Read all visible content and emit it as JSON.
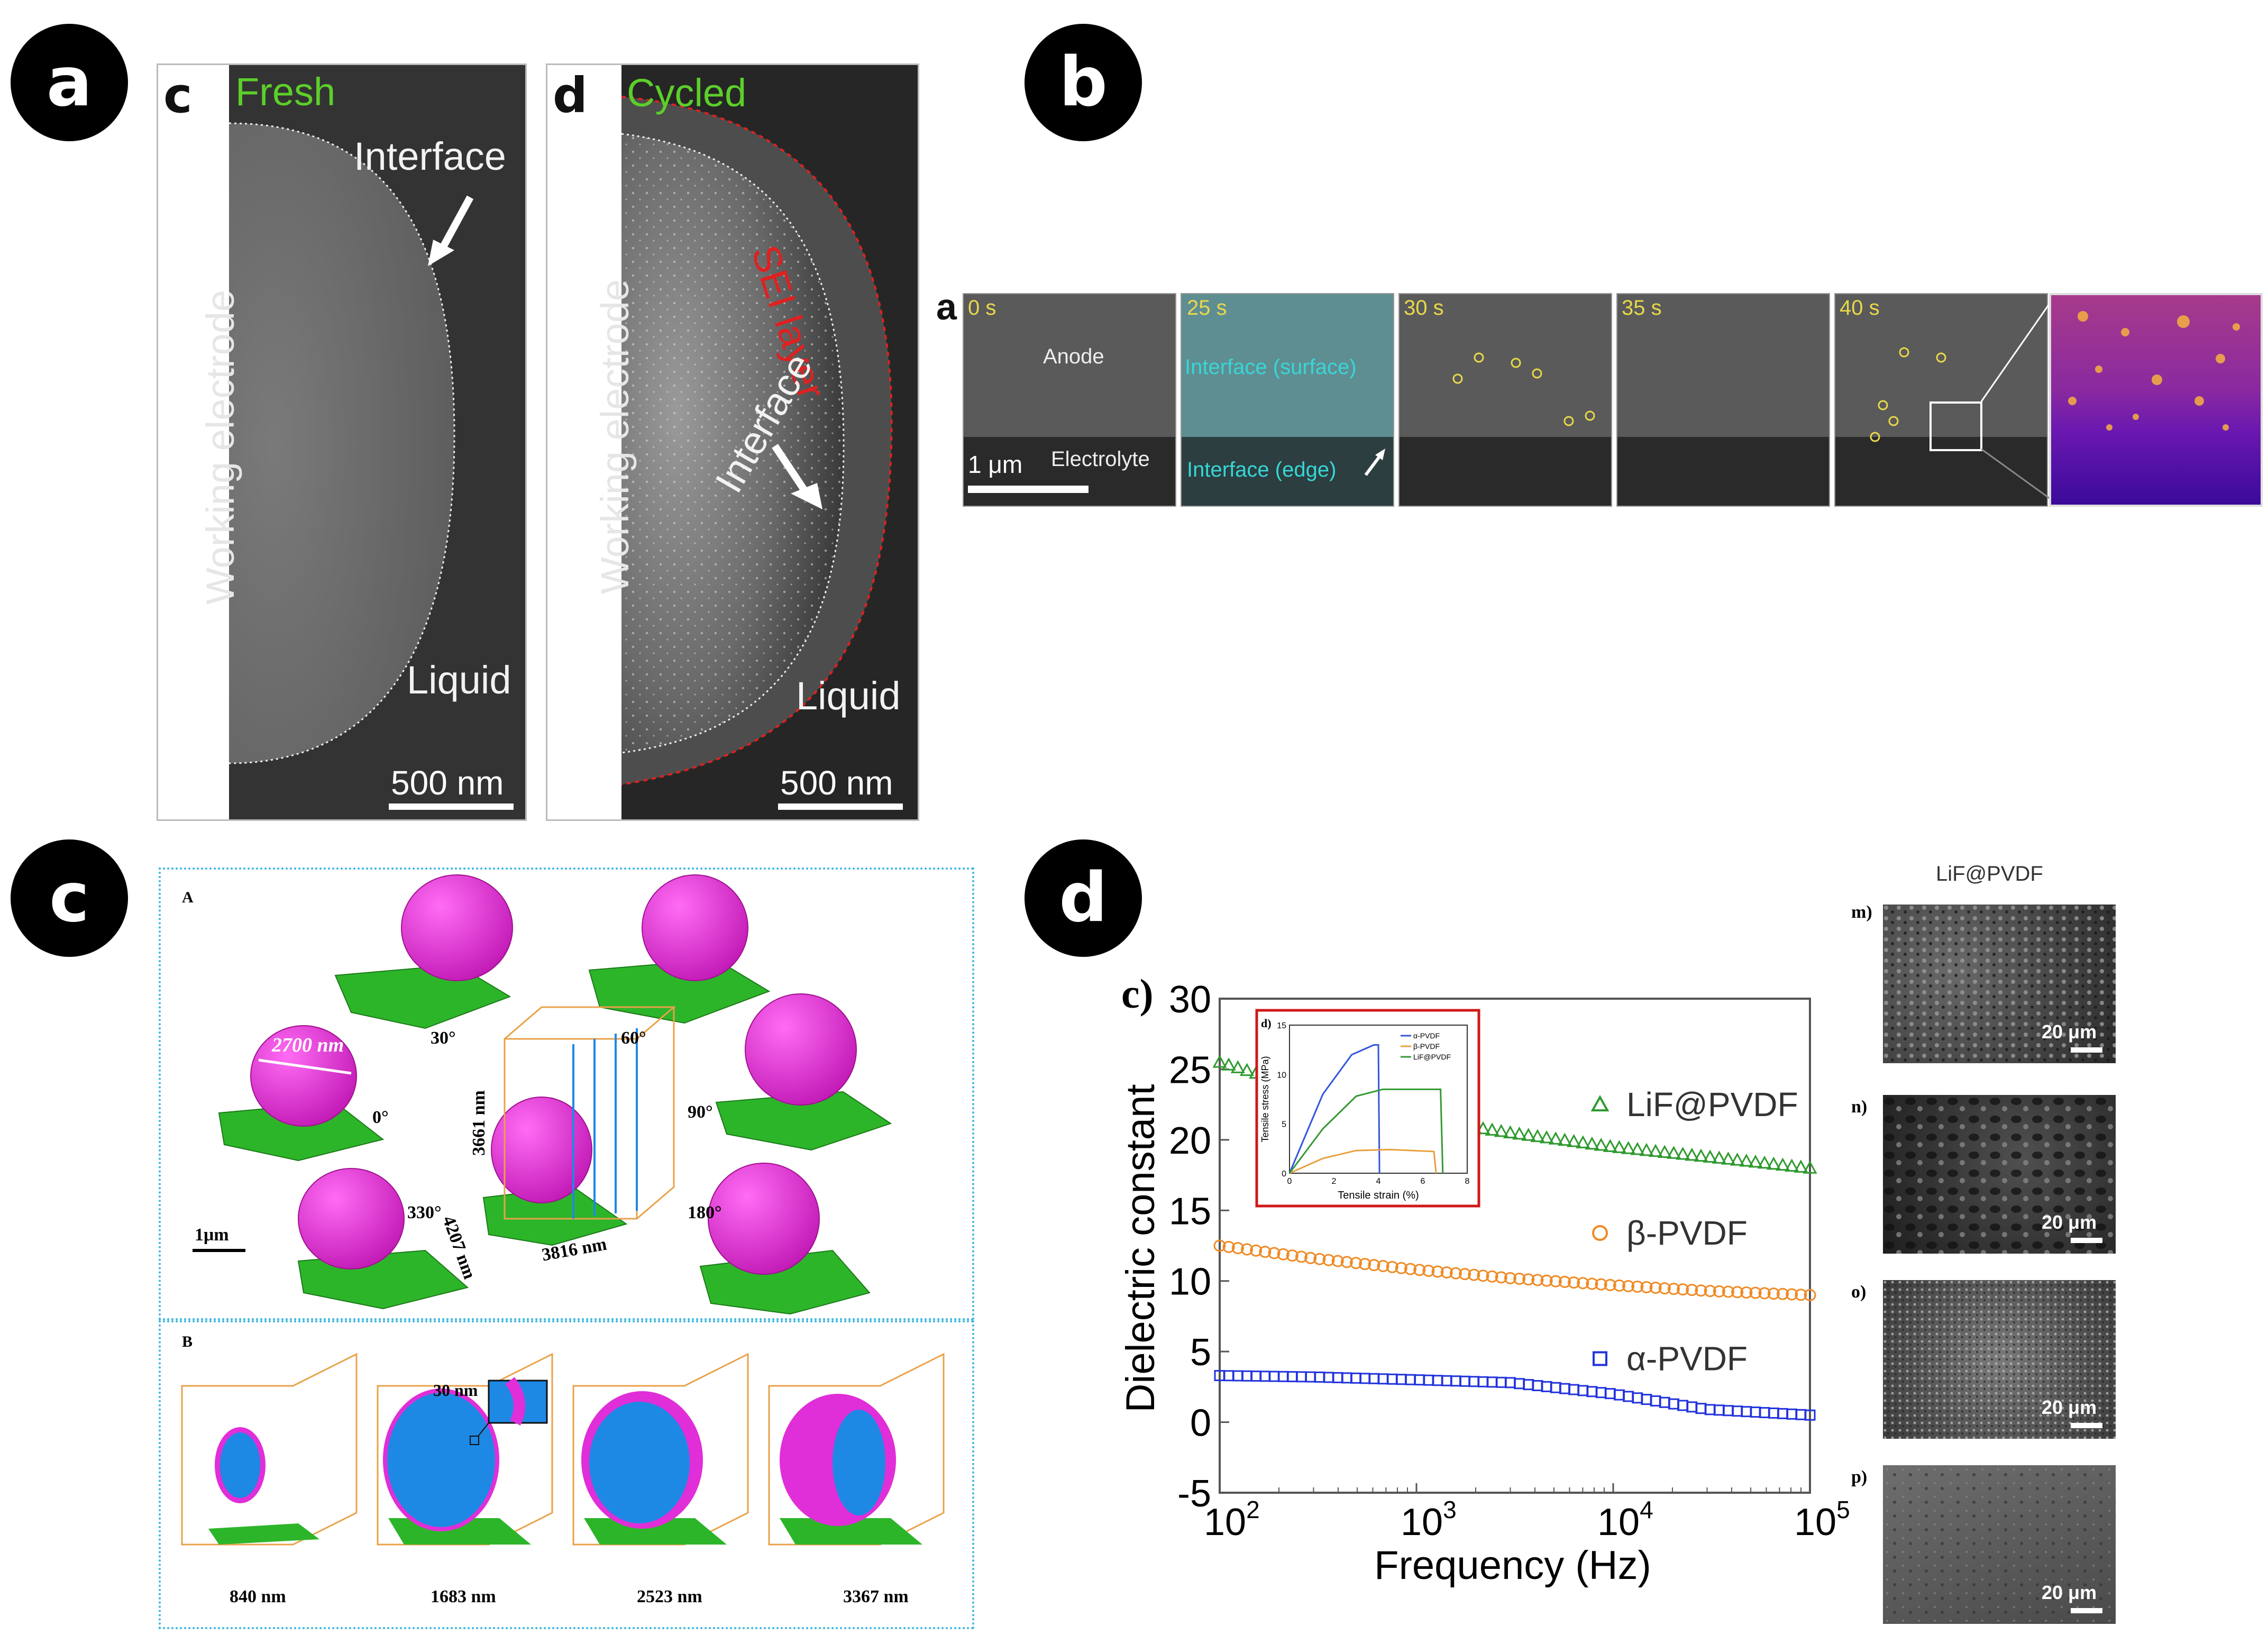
{
  "badges": [
    "a",
    "b",
    "c",
    "d"
  ],
  "panel_a": {
    "fresh": {
      "letter": "c",
      "label": "Fresh",
      "interface": "Interface",
      "working_electrode": "Working electrode",
      "liquid": "Liquid",
      "scale": "500 nm"
    },
    "cycled": {
      "letter": "d",
      "label": "Cycled",
      "sei": "SEI layer",
      "interface": "Interface",
      "working_electrode": "Working electrode",
      "liquid": "Liquid",
      "scale": "500 nm"
    },
    "colors": {
      "label_green": "#5ccf2a",
      "sei_red": "#e02020"
    }
  },
  "panel_b": {
    "letter": "a",
    "frames": [
      {
        "time": "0 s",
        "labels": [
          "Anode",
          "Electrolyte"
        ],
        "scale": "1 μm"
      },
      {
        "time": "25 s",
        "labels": [
          "Interface (surface)",
          "Interface (edge)"
        ]
      },
      {
        "time": "30 s"
      },
      {
        "time": "35 s"
      },
      {
        "time": "40 s"
      }
    ],
    "colors": {
      "time_yellow": "#e8d84a",
      "interface_cyan": "#38d6d6"
    }
  },
  "panel_c": {
    "A": {
      "letter": "A",
      "angles": [
        "30°",
        "60°",
        "0°",
        "90°",
        "330°",
        "180°"
      ],
      "diameter": "2700 nm",
      "box_dims": [
        "3661 nm",
        "4207 nm",
        "3816 nm"
      ],
      "scale": "1μm"
    },
    "B": {
      "letter": "B",
      "slices": [
        "840 nm",
        "1683 nm",
        "2523 nm",
        "3367 nm"
      ],
      "inset": "30 nm"
    },
    "colors": {
      "magenta": "#e02ed8",
      "green": "#2db52a",
      "blue": "#1e88e5",
      "orange": "#e9a24a",
      "frame": "#38b6e0"
    }
  },
  "panel_d": {
    "chart_data": {
      "type": "scatter",
      "panel_letter": "c)",
      "xlabel": "Frequency (Hz)",
      "ylabel": "Dielectric constant",
      "xscale": "log",
      "xlim": [
        100,
        100000
      ],
      "ylim": [
        -5,
        30
      ],
      "yticks": [
        -5,
        0,
        5,
        10,
        15,
        20,
        25,
        30
      ],
      "xticks": [
        {
          "base": "10",
          "exp": "2"
        },
        {
          "base": "10",
          "exp": "3"
        },
        {
          "base": "10",
          "exp": "4"
        },
        {
          "base": "10",
          "exp": "5"
        }
      ],
      "series": [
        {
          "name": "LiF@PVDF",
          "marker": "triangle",
          "color": "#2e9a2e",
          "x": [
            100,
            300,
            1000,
            3000,
            10000,
            30000,
            100000
          ],
          "y": [
            25.5,
            23.5,
            21.5,
            20.5,
            19.5,
            18.8,
            18.0
          ]
        },
        {
          "name": "β-PVDF",
          "marker": "circle",
          "color": "#f08a24",
          "x": [
            100,
            300,
            1000,
            3000,
            10000,
            30000,
            100000
          ],
          "y": [
            12.5,
            11.6,
            10.8,
            10.2,
            9.7,
            9.3,
            9.0
          ]
        },
        {
          "name": "α-PVDF",
          "marker": "square",
          "color": "#2233dd",
          "x": [
            100,
            300,
            1000,
            3000,
            10000,
            30000,
            100000
          ],
          "y": [
            3.3,
            3.2,
            3.0,
            2.8,
            2.0,
            0.9,
            0.5
          ]
        }
      ],
      "inset": {
        "panel_letter": "d)",
        "type": "line",
        "xlabel": "Tensile strain (%)",
        "ylabel": "Tensile stress (MPa)",
        "xlim": [
          0,
          8
        ],
        "ylim": [
          0,
          15
        ],
        "xticks": [
          0,
          2,
          4,
          6,
          8
        ],
        "yticks": [
          0,
          5,
          10,
          15
        ],
        "series": [
          {
            "name": "α-PVDF",
            "color": "#3355dd",
            "x": [
              0,
              1.5,
              2.8,
              3.8,
              4.0,
              4.05
            ],
            "y": [
              0,
              8,
              12,
              13,
              13,
              0
            ]
          },
          {
            "name": "β-PVDF",
            "color": "#e8a040",
            "x": [
              0,
              1.5,
              3,
              4.5,
              6.5,
              6.6
            ],
            "y": [
              0,
              1.5,
              2.3,
              2.4,
              2.2,
              0
            ]
          },
          {
            "name": "LiF@PVDF",
            "color": "#339933",
            "x": [
              0,
              1.5,
              3,
              4.2,
              6.8,
              6.9
            ],
            "y": [
              0,
              4.5,
              7.8,
              8.5,
              8.5,
              0
            ]
          }
        ]
      }
    },
    "sem_column": {
      "title": "LiF@PVDF",
      "panels": [
        {
          "label": "m)",
          "scale": "20 μm"
        },
        {
          "label": "n)",
          "scale": "20 μm"
        },
        {
          "label": "o)",
          "scale": "20 μm"
        },
        {
          "label": "p)",
          "scale": "20 μm"
        }
      ]
    }
  }
}
